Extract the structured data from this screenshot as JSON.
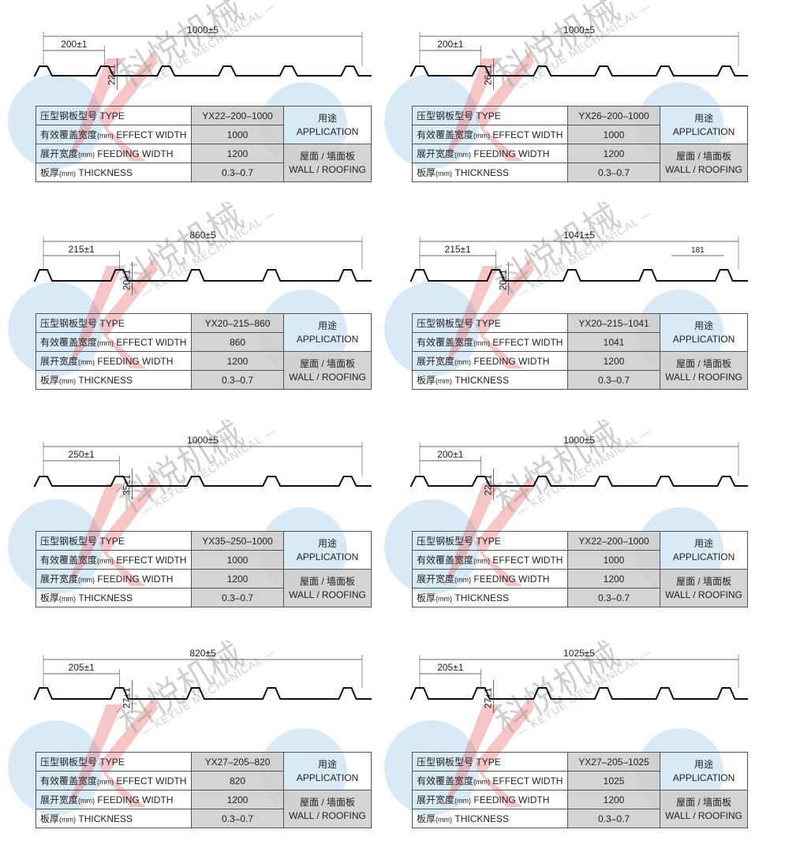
{
  "watermark": {
    "cn": "科悦机械",
    "en": "— KEYUE MECHANICAL —"
  },
  "row_labels": [
    {
      "cn": "压型钢板型号",
      "en": "TYPE"
    },
    {
      "cn": "有效覆盖宽度",
      "unit": "(mm)",
      "en": "EFFECT WIDTH"
    },
    {
      "cn": "展开宽度",
      "unit": "(mm)",
      "en": "FEEDING WIDTH"
    },
    {
      "cn": "板厚",
      "unit": "(mm)",
      "en": "THICKNESS"
    }
  ],
  "application": {
    "title_cn": "用途",
    "title_en": "APPLICATION",
    "use_cn": "屋面 / 墙面板",
    "use_en": "WALL / ROOFING"
  },
  "panels": [
    {
      "total": "1000±5",
      "pitch": "200±1",
      "height": "22±1",
      "type": "YX22–200–1000",
      "effect_width": "1000",
      "feeding_width": "1200",
      "thickness": "0.3–0.7"
    },
    {
      "total": "1000±5",
      "pitch": "200±1",
      "height": "26±1",
      "type": "YX26–200–1000",
      "effect_width": "1000",
      "feeding_width": "1200",
      "thickness": "0.3–0.7"
    },
    {
      "total": "860±5",
      "pitch": "215±1",
      "height": "20±1",
      "type": "YX20–215–860",
      "effect_width": "860",
      "feeding_width": "1200",
      "thickness": "0.3–0.7"
    },
    {
      "total": "1041±5",
      "pitch": "215±1",
      "height": "20±1",
      "end_pitch": "181",
      "type": "YX20–215–1041",
      "effect_width": "1041",
      "feeding_width": "1200",
      "thickness": "0.3–0.7"
    },
    {
      "total": "1000±5",
      "pitch": "250±1",
      "height": "35±1",
      "type": "YX35–250–1000",
      "effect_width": "1000",
      "feeding_width": "1200",
      "thickness": "0.3–0.7"
    },
    {
      "total": "1000±5",
      "pitch": "200±1",
      "height": "22±1",
      "type": "YX22–200–1000",
      "effect_width": "1000",
      "feeding_width": "1200",
      "thickness": "0.3–0.7"
    },
    {
      "total": "820±5",
      "pitch": "205±1",
      "height": "27±1",
      "type": "YX27–205–820",
      "effect_width": "820",
      "feeding_width": "1200",
      "thickness": "0.3–0.7"
    },
    {
      "total": "1025±5",
      "pitch": "205±1",
      "height": "27±1",
      "type": "YX27–205–1025",
      "effect_width": "1025",
      "feeding_width": "1200",
      "thickness": "0.3–0.7"
    }
  ]
}
